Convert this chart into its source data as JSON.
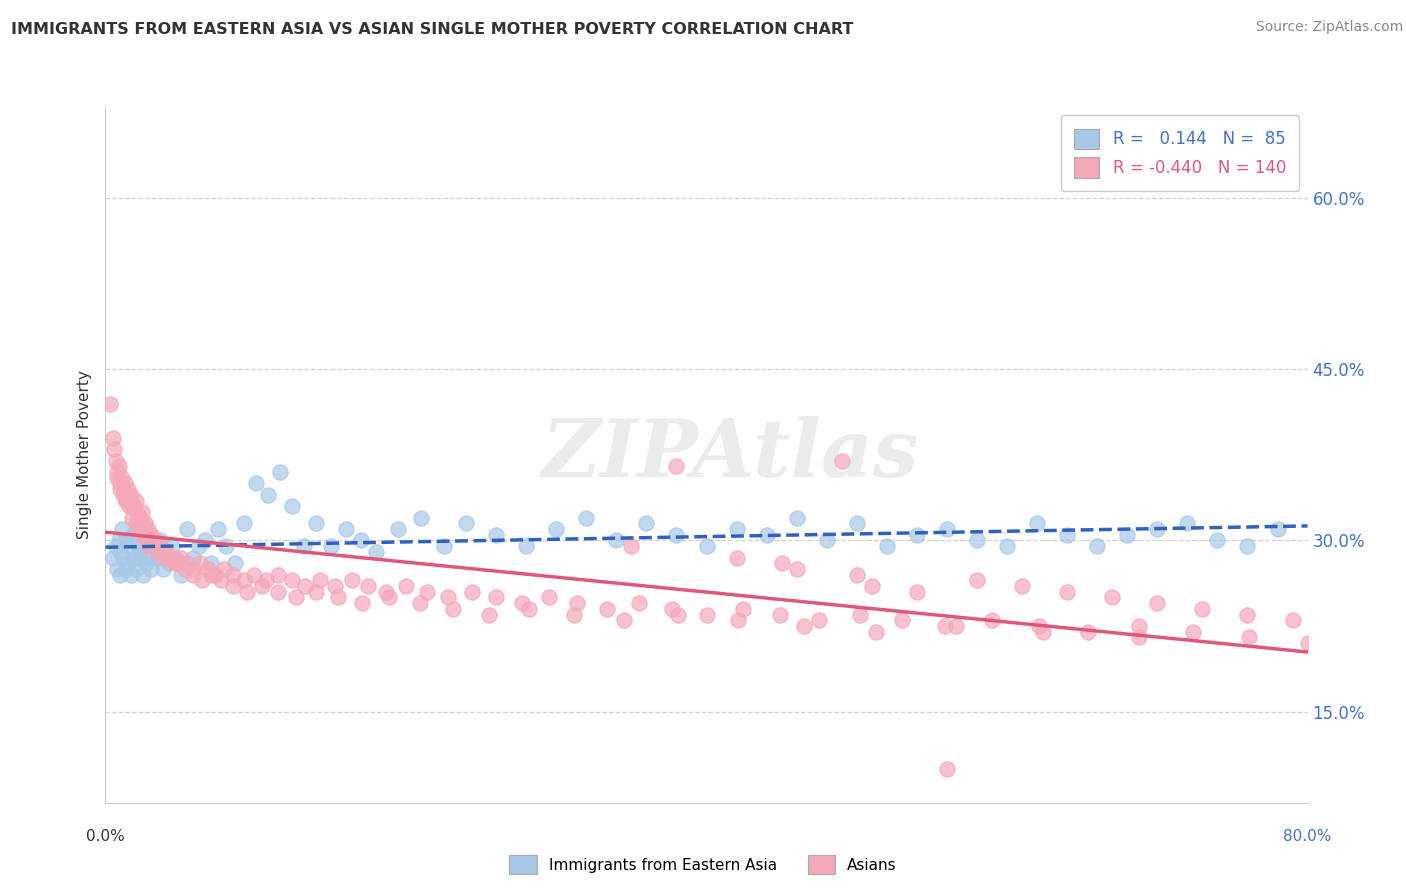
{
  "title": "IMMIGRANTS FROM EASTERN ASIA VS ASIAN SINGLE MOTHER POVERTY CORRELATION CHART",
  "source": "Source: ZipAtlas.com",
  "ylabel": "Single Mother Poverty",
  "ytick_labels": [
    "15.0%",
    "30.0%",
    "45.0%",
    "60.0%"
  ],
  "ytick_values": [
    0.15,
    0.3,
    0.45,
    0.6
  ],
  "xlim": [
    0.0,
    0.8
  ],
  "ylim": [
    0.07,
    0.68
  ],
  "blue_R": 0.144,
  "blue_N": 85,
  "pink_R": -0.44,
  "pink_N": 140,
  "blue_color": "#a8c8e8",
  "pink_color": "#f4a8b8",
  "blue_line_color": "#3060c0",
  "pink_line_color": "#e05878",
  "legend_label_blue": "Immigrants from Eastern Asia",
  "legend_label_pink": "Asians",
  "background_color": "#ffffff",
  "grid_color": "#d0d0d0",
  "blue_x": [
    0.005,
    0.007,
    0.008,
    0.009,
    0.01,
    0.01,
    0.011,
    0.012,
    0.013,
    0.014,
    0.015,
    0.016,
    0.017,
    0.018,
    0.019,
    0.02,
    0.021,
    0.022,
    0.023,
    0.024,
    0.025,
    0.026,
    0.027,
    0.028,
    0.029,
    0.03,
    0.032,
    0.034,
    0.036,
    0.038,
    0.04,
    0.042,
    0.044,
    0.046,
    0.05,
    0.054,
    0.058,
    0.062,
    0.066,
    0.07,
    0.075,
    0.08,
    0.086,
    0.092,
    0.1,
    0.108,
    0.116,
    0.124,
    0.132,
    0.14,
    0.15,
    0.16,
    0.17,
    0.18,
    0.195,
    0.21,
    0.225,
    0.24,
    0.26,
    0.28,
    0.3,
    0.32,
    0.34,
    0.36,
    0.38,
    0.4,
    0.42,
    0.44,
    0.46,
    0.48,
    0.5,
    0.52,
    0.54,
    0.56,
    0.58,
    0.6,
    0.62,
    0.64,
    0.66,
    0.68,
    0.7,
    0.72,
    0.74,
    0.76,
    0.78
  ],
  "blue_y": [
    0.285,
    0.295,
    0.275,
    0.3,
    0.27,
    0.29,
    0.31,
    0.285,
    0.275,
    0.3,
    0.28,
    0.295,
    0.27,
    0.305,
    0.285,
    0.275,
    0.31,
    0.29,
    0.285,
    0.295,
    0.27,
    0.305,
    0.28,
    0.3,
    0.285,
    0.275,
    0.295,
    0.285,
    0.3,
    0.275,
    0.29,
    0.28,
    0.295,
    0.285,
    0.27,
    0.31,
    0.285,
    0.295,
    0.3,
    0.28,
    0.31,
    0.295,
    0.28,
    0.315,
    0.35,
    0.34,
    0.36,
    0.33,
    0.295,
    0.315,
    0.295,
    0.31,
    0.3,
    0.29,
    0.31,
    0.32,
    0.295,
    0.315,
    0.305,
    0.295,
    0.31,
    0.32,
    0.3,
    0.315,
    0.305,
    0.295,
    0.31,
    0.305,
    0.32,
    0.3,
    0.315,
    0.295,
    0.305,
    0.31,
    0.3,
    0.295,
    0.315,
    0.305,
    0.295,
    0.305,
    0.31,
    0.315,
    0.3,
    0.295,
    0.31
  ],
  "pink_x": [
    0.003,
    0.005,
    0.006,
    0.007,
    0.008,
    0.009,
    0.01,
    0.011,
    0.012,
    0.013,
    0.014,
    0.015,
    0.016,
    0.017,
    0.018,
    0.019,
    0.02,
    0.021,
    0.022,
    0.023,
    0.024,
    0.025,
    0.026,
    0.027,
    0.028,
    0.029,
    0.03,
    0.032,
    0.034,
    0.036,
    0.038,
    0.04,
    0.043,
    0.046,
    0.05,
    0.054,
    0.058,
    0.063,
    0.068,
    0.073,
    0.079,
    0.085,
    0.092,
    0.099,
    0.107,
    0.115,
    0.124,
    0.133,
    0.143,
    0.153,
    0.164,
    0.175,
    0.187,
    0.2,
    0.214,
    0.228,
    0.244,
    0.26,
    0.277,
    0.295,
    0.314,
    0.334,
    0.355,
    0.377,
    0.4,
    0.424,
    0.449,
    0.475,
    0.502,
    0.53,
    0.559,
    0.59,
    0.621,
    0.654,
    0.688,
    0.724,
    0.761,
    0.8,
    0.008,
    0.01,
    0.012,
    0.014,
    0.016,
    0.018,
    0.02,
    0.022,
    0.024,
    0.026,
    0.028,
    0.03,
    0.033,
    0.036,
    0.04,
    0.044,
    0.048,
    0.053,
    0.058,
    0.064,
    0.07,
    0.077,
    0.085,
    0.094,
    0.104,
    0.115,
    0.127,
    0.14,
    0.155,
    0.171,
    0.189,
    0.209,
    0.231,
    0.255,
    0.282,
    0.312,
    0.345,
    0.381,
    0.421,
    0.465,
    0.513,
    0.566,
    0.624,
    0.688,
    0.5,
    0.35,
    0.45,
    0.38,
    0.42,
    0.46,
    0.51,
    0.54,
    0.58,
    0.61,
    0.64,
    0.67,
    0.7,
    0.73,
    0.76,
    0.79,
    0.56,
    0.49
  ],
  "pink_y": [
    0.42,
    0.39,
    0.38,
    0.37,
    0.355,
    0.365,
    0.345,
    0.355,
    0.34,
    0.35,
    0.335,
    0.345,
    0.33,
    0.34,
    0.32,
    0.33,
    0.315,
    0.325,
    0.31,
    0.32,
    0.305,
    0.315,
    0.31,
    0.3,
    0.305,
    0.295,
    0.305,
    0.3,
    0.29,
    0.295,
    0.285,
    0.29,
    0.285,
    0.28,
    0.285,
    0.28,
    0.275,
    0.28,
    0.275,
    0.27,
    0.275,
    0.27,
    0.265,
    0.27,
    0.265,
    0.27,
    0.265,
    0.26,
    0.265,
    0.26,
    0.265,
    0.26,
    0.255,
    0.26,
    0.255,
    0.25,
    0.255,
    0.25,
    0.245,
    0.25,
    0.245,
    0.24,
    0.245,
    0.24,
    0.235,
    0.24,
    0.235,
    0.23,
    0.235,
    0.23,
    0.225,
    0.23,
    0.225,
    0.22,
    0.225,
    0.22,
    0.215,
    0.21,
    0.36,
    0.35,
    0.345,
    0.335,
    0.34,
    0.33,
    0.335,
    0.32,
    0.325,
    0.315,
    0.31,
    0.305,
    0.3,
    0.295,
    0.29,
    0.285,
    0.28,
    0.275,
    0.27,
    0.265,
    0.27,
    0.265,
    0.26,
    0.255,
    0.26,
    0.255,
    0.25,
    0.255,
    0.25,
    0.245,
    0.25,
    0.245,
    0.24,
    0.235,
    0.24,
    0.235,
    0.23,
    0.235,
    0.23,
    0.225,
    0.22,
    0.225,
    0.22,
    0.215,
    0.27,
    0.295,
    0.28,
    0.365,
    0.285,
    0.275,
    0.26,
    0.255,
    0.265,
    0.26,
    0.255,
    0.25,
    0.245,
    0.24,
    0.235,
    0.23,
    0.1,
    0.37
  ]
}
